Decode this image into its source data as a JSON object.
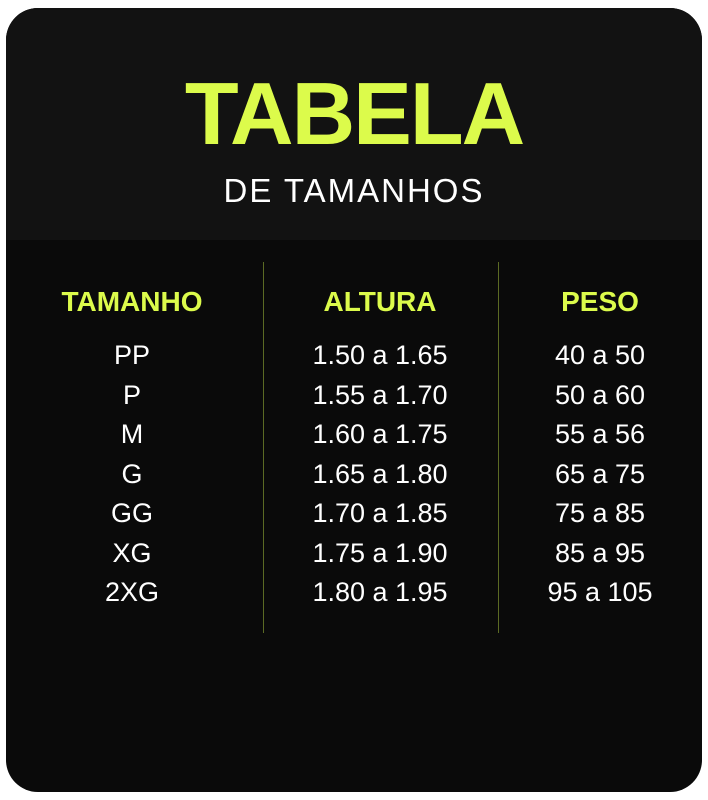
{
  "header": {
    "title": "TABELA",
    "subtitle": "DE TAMANHOS"
  },
  "colors": {
    "accent": "#dcfb4b",
    "background": "#0a0a0a",
    "text": "#ffffff"
  },
  "table": {
    "columns": [
      "TAMANHO",
      "ALTURA",
      "PESO"
    ],
    "rows": [
      [
        "PP",
        "1.50 a 1.65",
        "40 a 50"
      ],
      [
        "P",
        "1.55 a 1.70",
        "50 a 60"
      ],
      [
        "M",
        "1.60 a 1.75",
        "55 a 56"
      ],
      [
        "G",
        "1.65 a 1.80",
        "65 a 75"
      ],
      [
        "GG",
        "1.70 a 1.85",
        "75 a 85"
      ],
      [
        "XG",
        "1.75 a 1.90",
        "85 a 95"
      ],
      [
        "2XG",
        "1.80 a 1.95",
        "95 a 105"
      ]
    ]
  }
}
